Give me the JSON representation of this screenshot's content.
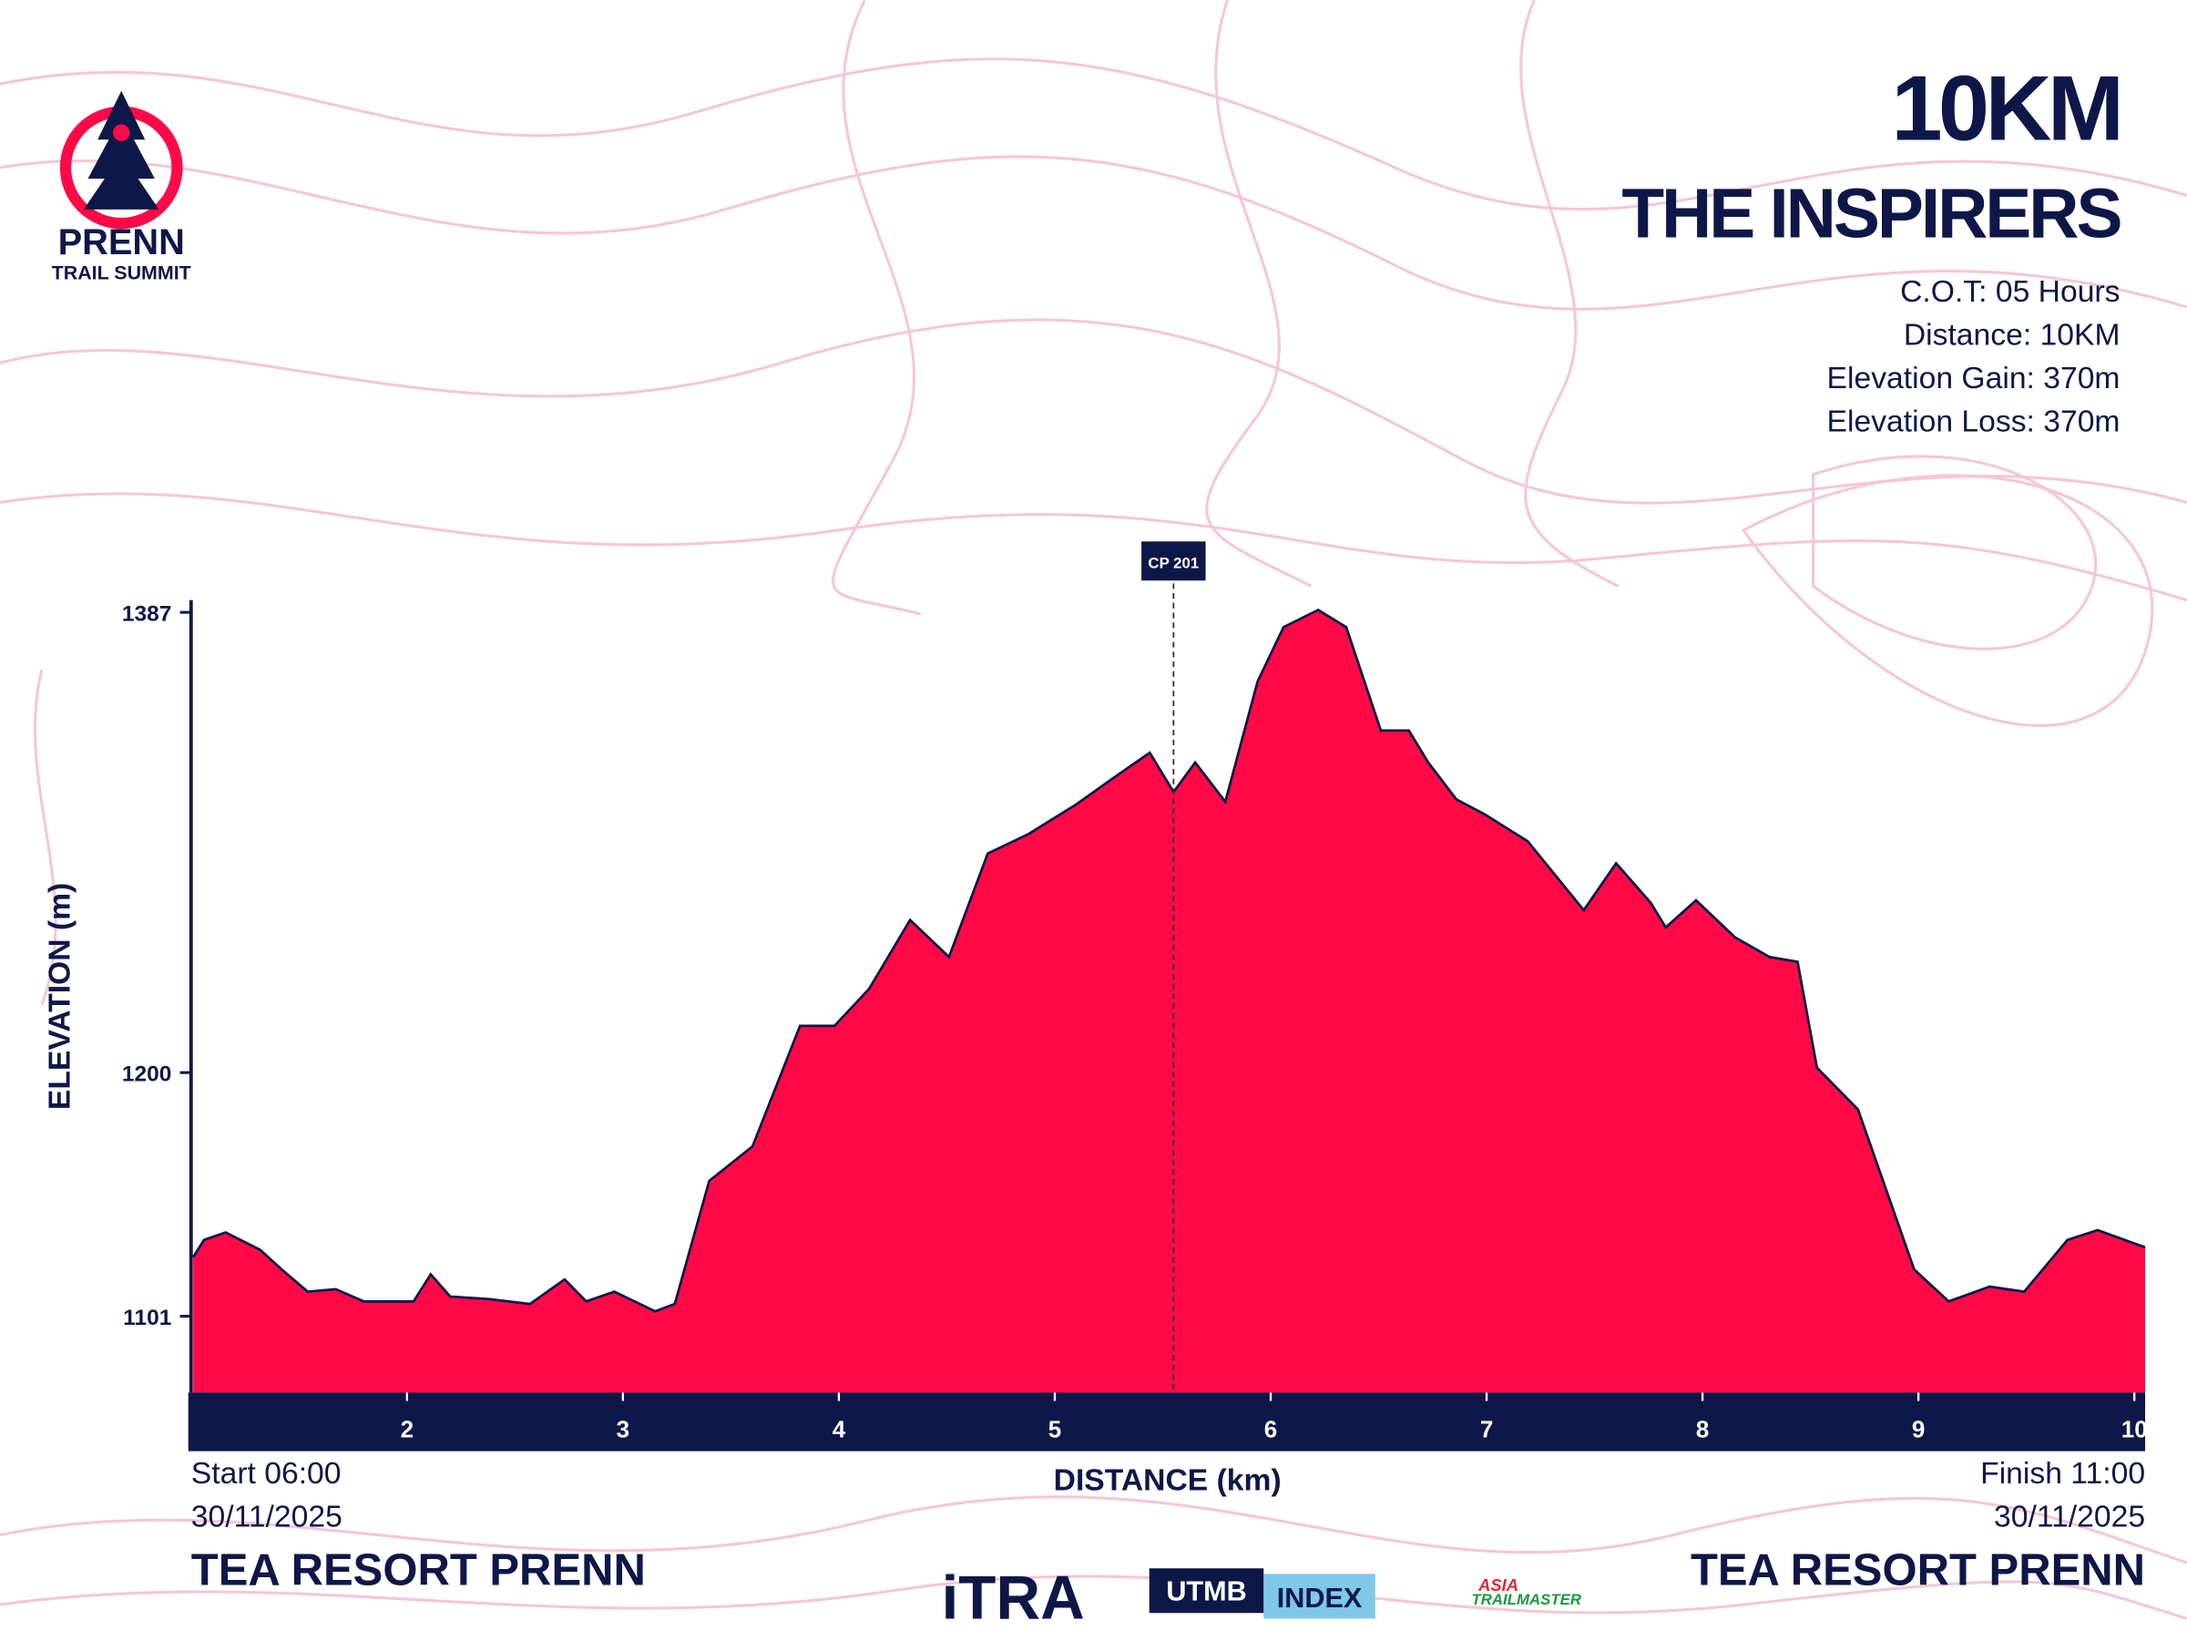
{
  "chart_data": {
    "type": "area",
    "title": "10KM",
    "subtitle": "THE INSPIRERS",
    "info": [
      "C.O.T: 05 Hours",
      "Distance: 10KM",
      "Elevation Gain: 370m",
      "Elevation Loss: 370m"
    ],
    "y_label": "ELEVATION (m)",
    "x_label": "DISTANCE (km)",
    "start": {
      "time": "Start 06:00",
      "date": "30/11/2025",
      "place": "TEA RESORT PRENN"
    },
    "finish": {
      "time": "Finish 11:00",
      "date": "30/11/2025",
      "place": "TEA RESORT PRENN"
    },
    "logo": {
      "name": "PRENN",
      "tagline": "TRAIL SUMMIT"
    },
    "sponsors": [
      "iTRA",
      "UTMB",
      "INDEX",
      "ASIA",
      "TRAILMASTER"
    ],
    "annotations": [
      {
        "label": "CP 201",
        "x": 5.55
      }
    ],
    "color": "#ff0a47",
    "line_color": "#0e1848",
    "x": [
      1.01,
      1.06,
      1.16,
      1.32,
      1.42,
      1.54,
      1.67,
      1.8,
      2.03,
      2.11,
      2.2,
      2.38,
      2.57,
      2.73,
      2.83,
      2.96,
      3.15,
      3.24,
      3.4,
      3.6,
      3.82,
      3.98,
      4.14,
      4.33,
      4.51,
      4.69,
      4.88,
      5.1,
      5.26,
      5.44,
      5.55,
      5.65,
      5.79,
      5.94,
      6.06,
      6.22,
      6.35,
      6.51,
      6.64,
      6.73,
      6.86,
      6.99,
      7.19,
      7.45,
      7.6,
      7.76,
      7.83,
      7.97,
      8.15,
      8.31,
      8.44,
      8.53,
      8.72,
      8.98,
      9.14,
      9.33,
      9.49,
      9.69,
      9.83,
      10.05
    ],
    "values": [
      1125,
      1132,
      1135,
      1128,
      1120,
      1111,
      1112,
      1107,
      1107,
      1118,
      1109,
      1108,
      1106,
      1116,
      1107,
      1111,
      1103,
      1106,
      1156,
      1170,
      1219,
      1219,
      1234,
      1262,
      1247,
      1289,
      1297,
      1309,
      1319,
      1330,
      1314,
      1326,
      1310,
      1359,
      1381,
      1388,
      1381,
      1339,
      1339,
      1326,
      1311,
      1305,
      1294,
      1266,
      1285,
      1269,
      1259,
      1270,
      1255,
      1247,
      1245,
      1202,
      1185,
      1120,
      1107,
      1113,
      1111,
      1132,
      1136,
      1129
    ],
    "xlim": [
      1,
      10.05
    ],
    "xticks": [
      2,
      3,
      4,
      5,
      6,
      7,
      8,
      9,
      10
    ],
    "ylim": [
      1070,
      1392
    ],
    "yticks": [
      1101,
      1200,
      1387
    ]
  }
}
